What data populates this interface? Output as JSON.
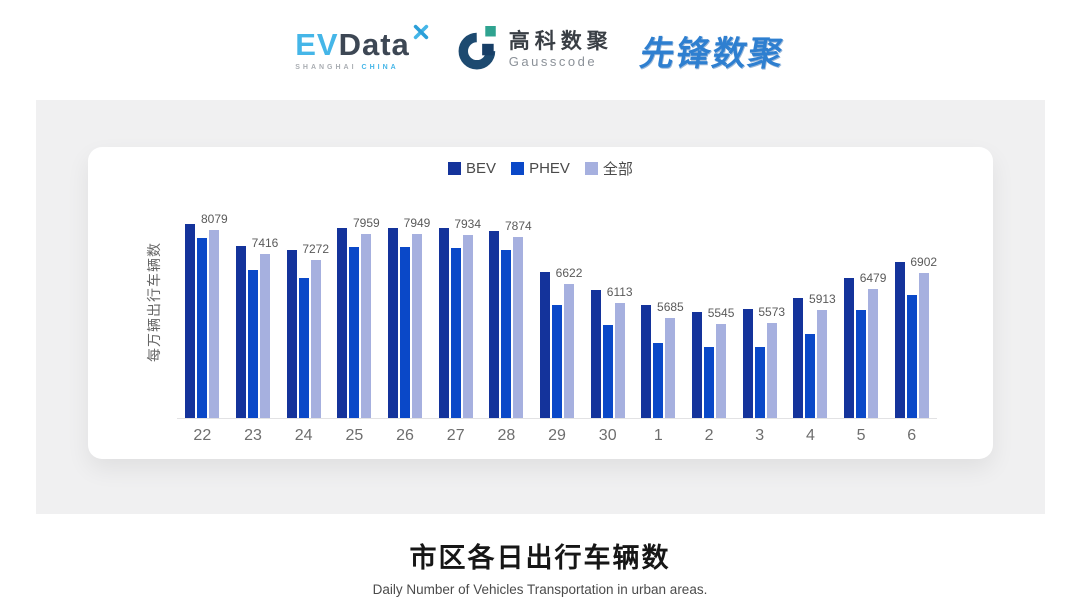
{
  "header": {
    "evdata": {
      "ev": "EV",
      "data": "Data",
      "sub_shanghai": "SHANGHAI",
      "sub_china": "CHINA"
    },
    "gausscode": {
      "name_cn": "高科数聚",
      "name_en": "Gausscode"
    },
    "pioneer": {
      "name": "先锋数聚"
    }
  },
  "chart_data": {
    "type": "bar",
    "title": "市区各日出行车辆数",
    "subtitle": "Daily Number of Vehicles Transportation in urban areas.",
    "ylabel": "每万辆出行车辆数",
    "xlabel": "",
    "categories": [
      "22",
      "23",
      "24",
      "25",
      "26",
      "27",
      "28",
      "29",
      "30",
      "1",
      "2",
      "3",
      "4",
      "5",
      "6"
    ],
    "series": [
      {
        "name": "BEV",
        "color": "#14339B",
        "values": [
          8220,
          7640,
          7530,
          8130,
          8130,
          8130,
          8030,
          6940,
          6440,
          6040,
          5870,
          5950,
          6230,
          6770,
          7210
        ]
      },
      {
        "name": "PHEV",
        "color": "#0A48C8",
        "values": [
          7860,
          6990,
          6770,
          7620,
          7620,
          7590,
          7530,
          6060,
          5520,
          5030,
          4920,
          4920,
          5270,
          5900,
          6310
        ]
      },
      {
        "name": "全部",
        "color": "#A6B0DF",
        "values": [
          8079,
          7416,
          7272,
          7959,
          7949,
          7934,
          7874,
          6622,
          6113,
          5685,
          5545,
          5573,
          5913,
          6479,
          6902
        ]
      }
    ],
    "value_labels_series": "全部",
    "value_labels": [
      8079,
      7416,
      7272,
      7959,
      7949,
      7934,
      7874,
      6622,
      6113,
      5685,
      5545,
      5573,
      5913,
      6479,
      6902
    ],
    "ylim": [
      3000,
      8500
    ],
    "grid": false,
    "legend_position": "top-center",
    "note": "BEV and PHEV values estimated from bar heights; 全部 values are the printed data labels."
  }
}
